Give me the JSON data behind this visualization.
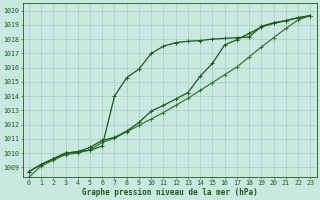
{
  "title": "Graphe pression niveau de la mer (hPa)",
  "hours": [
    0,
    1,
    2,
    3,
    4,
    5,
    6,
    7,
    8,
    9,
    10,
    11,
    12,
    13,
    14,
    15,
    16,
    17,
    18,
    19,
    20,
    21,
    22,
    23
  ],
  "ylim": [
    1008.3,
    1020.5
  ],
  "xlim": [
    -0.5,
    23.5
  ],
  "yticks": [
    1009,
    1010,
    1011,
    1012,
    1013,
    1014,
    1015,
    1016,
    1017,
    1018,
    1019,
    1020
  ],
  "bg_color": "#c8e8e0",
  "grid_color": "#a0c8c0",
  "line_color1": "#1a5c1a",
  "line_color2": "#1a5c1a",
  "line_color3": "#2e7d32",
  "series1": [
    1008.7,
    1009.2,
    1009.6,
    1010.0,
    1010.1,
    1010.2,
    1010.5,
    1014.0,
    1015.3,
    1015.9,
    1017.0,
    1017.5,
    1017.75,
    1017.85,
    1017.9,
    1018.0,
    1018.05,
    1018.1,
    1018.15,
    1018.9,
    1019.15,
    1019.3,
    1019.5,
    1019.65
  ],
  "series2": [
    1008.7,
    1009.2,
    1009.6,
    1010.0,
    1010.1,
    1010.4,
    1010.9,
    1011.1,
    1011.55,
    1012.15,
    1012.95,
    1013.35,
    1013.8,
    1014.25,
    1015.4,
    1016.3,
    1017.6,
    1017.95,
    1018.4,
    1018.85,
    1019.1,
    1019.3,
    1019.5,
    1019.65
  ],
  "series3": [
    1008.3,
    1009.1,
    1009.5,
    1009.9,
    1010.0,
    1010.25,
    1010.75,
    1011.05,
    1011.5,
    1011.95,
    1012.4,
    1012.85,
    1013.35,
    1013.85,
    1014.4,
    1014.95,
    1015.5,
    1016.05,
    1016.75,
    1017.45,
    1018.1,
    1018.75,
    1019.35,
    1019.65
  ],
  "xlabel_fontsize": 5.5,
  "ylabel_fontsize": 5.0,
  "tick_fontsize": 4.8,
  "linewidth": 0.9,
  "markersize": 2.5
}
